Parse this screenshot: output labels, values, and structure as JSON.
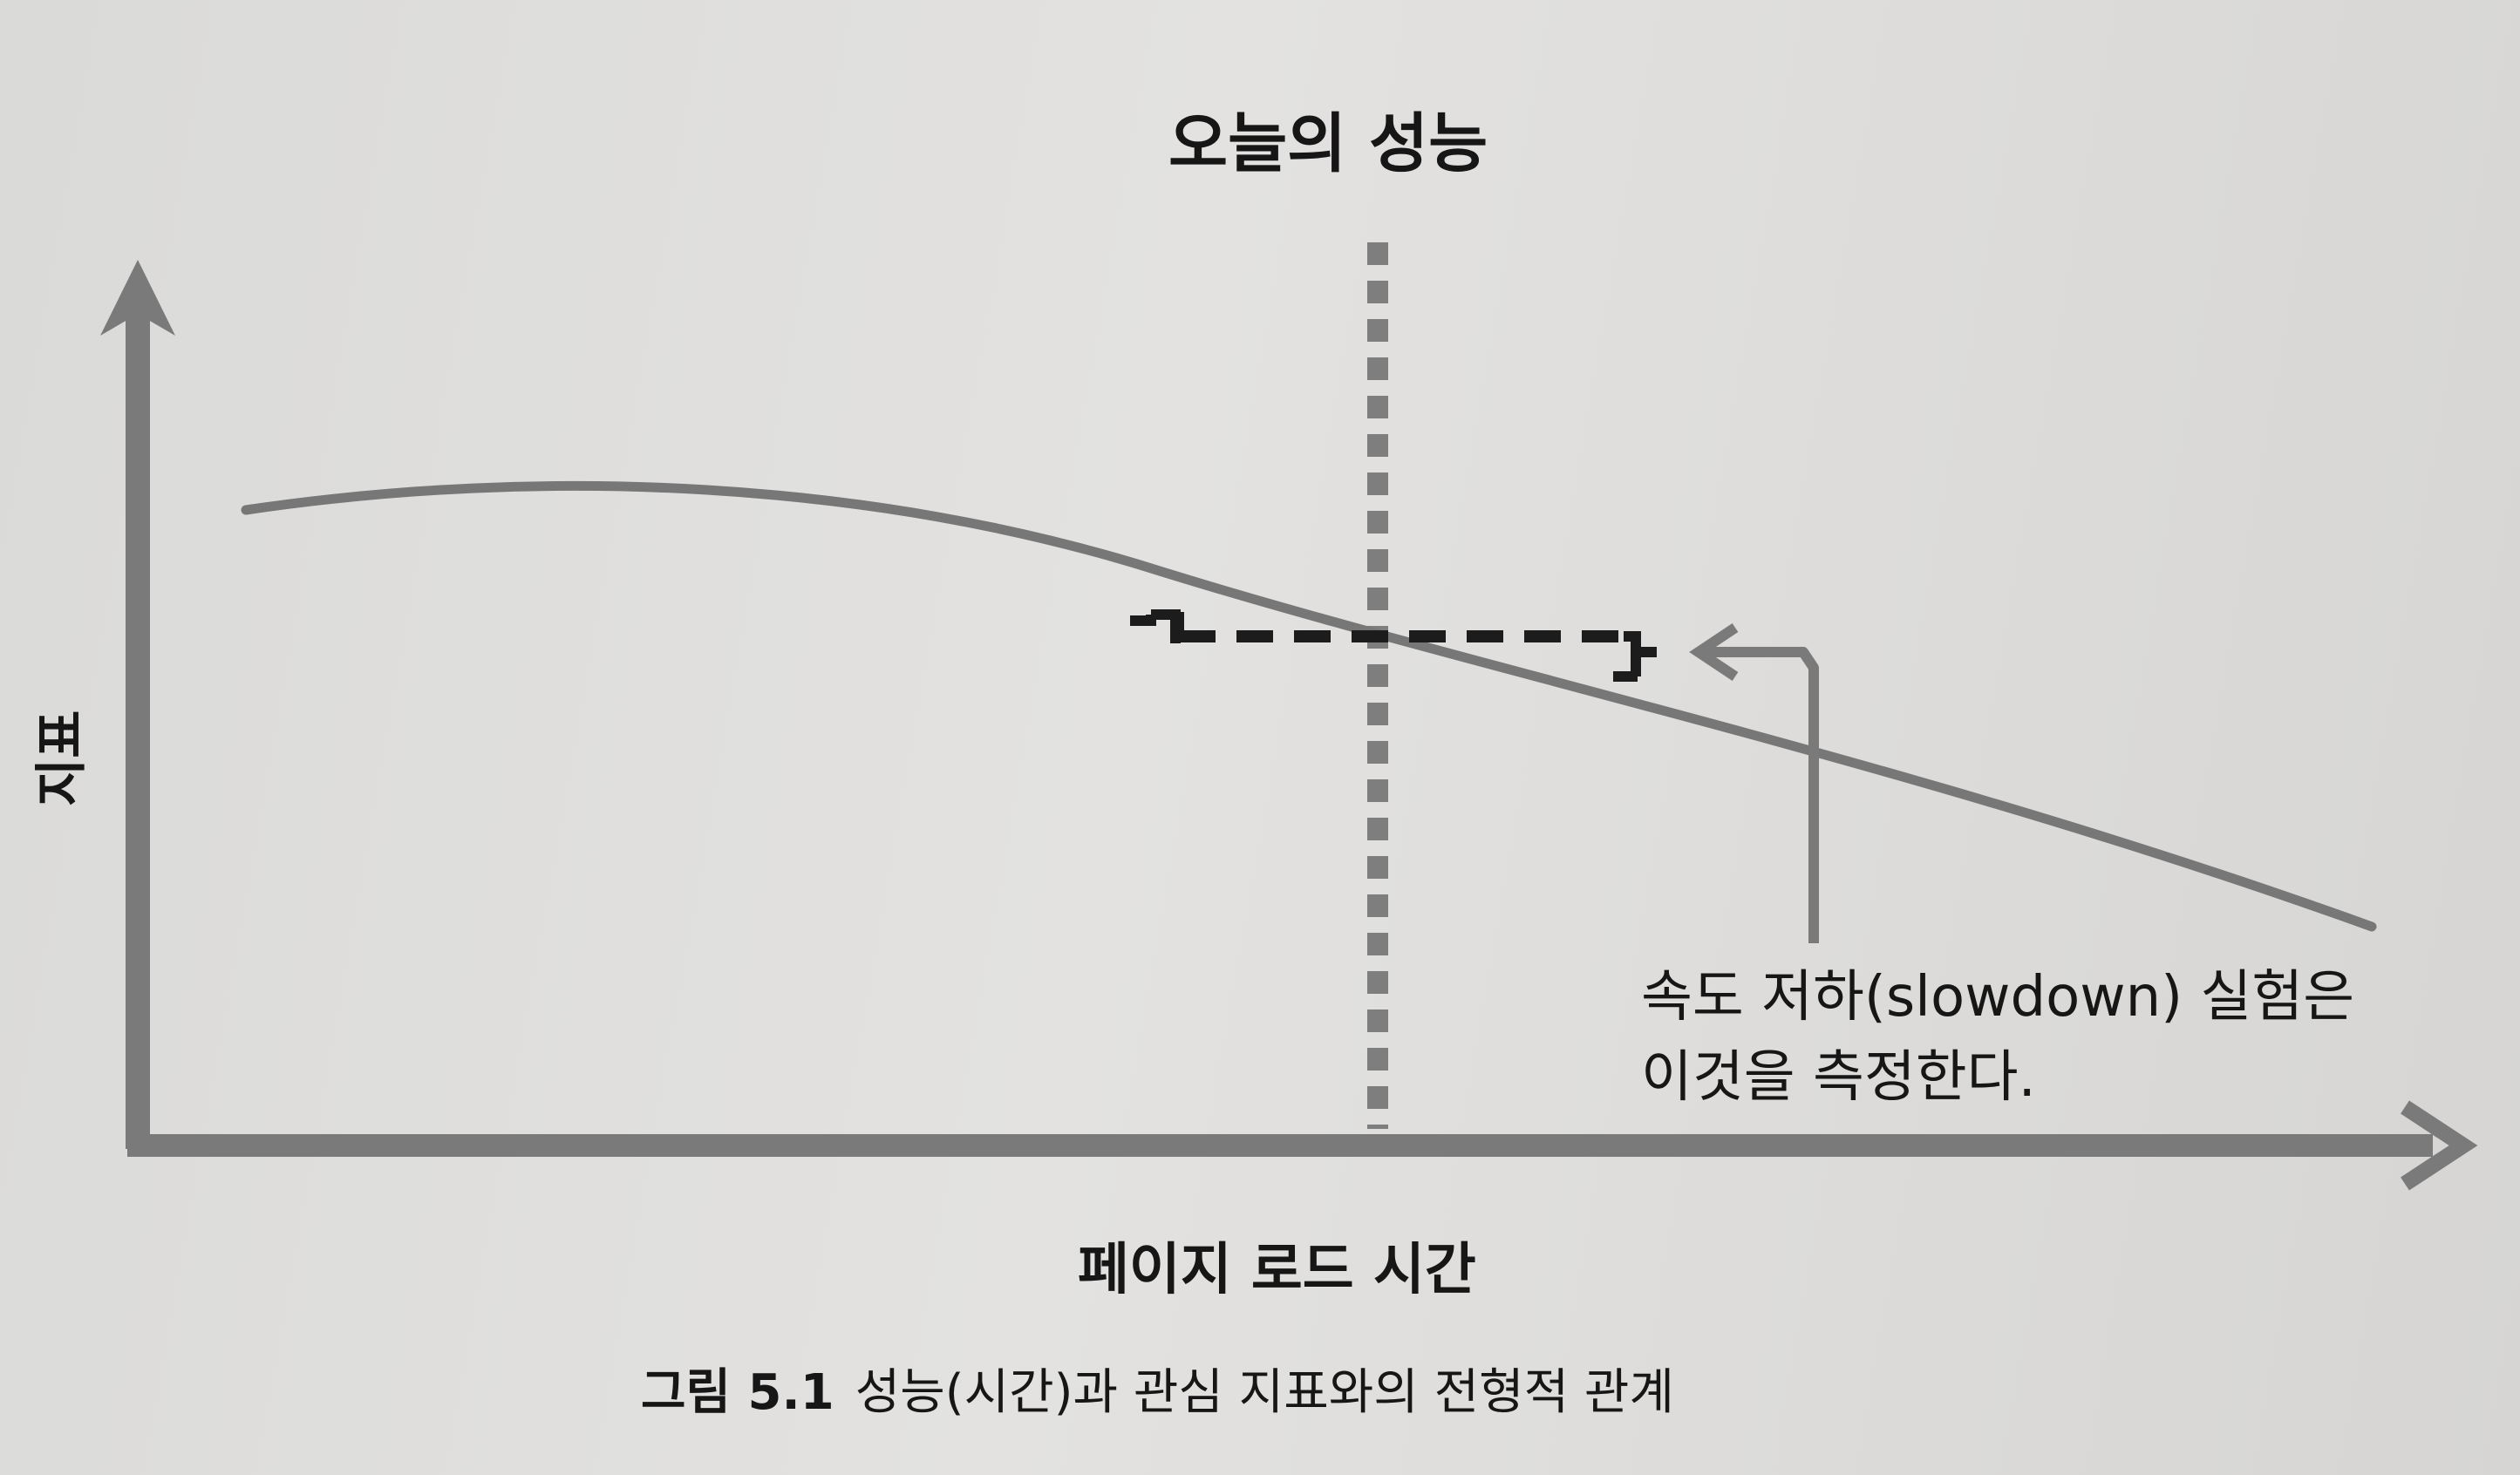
{
  "figure": {
    "title": "오늘의 성능",
    "y_axis_label": "지표",
    "x_axis_label": "페이지 로드 시간",
    "annotation": "속도 저하(slowdown) 실험은\n이것을 측정한다.",
    "caption_number": "그림 5.1",
    "caption_text": "성능(시간)과 관심 지표와의 전형적 관계"
  },
  "colors": {
    "axis": "#7a7a7a",
    "curve": "#777777",
    "dashed_marker": "#1c1c1c",
    "today_line": "#7e7e7e",
    "text": "#161616"
  }
}
